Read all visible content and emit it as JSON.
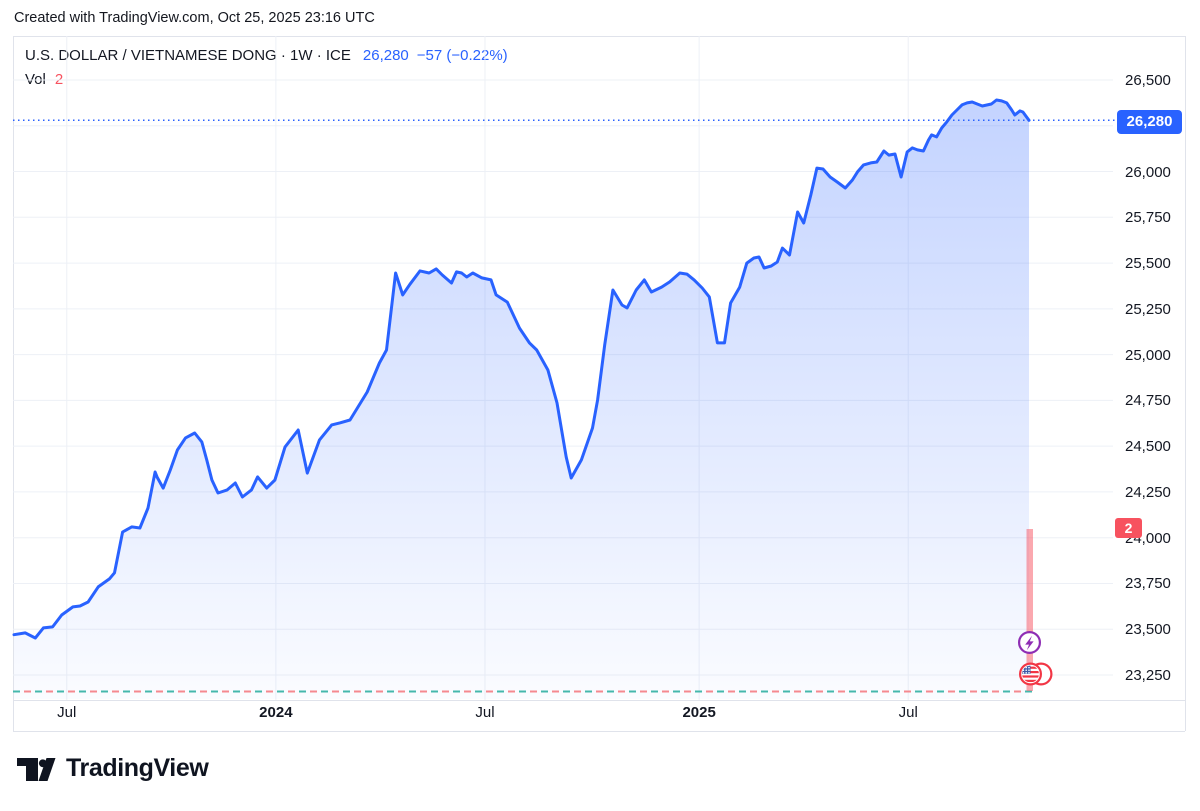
{
  "caption": "Created with TradingView.com, Oct 25, 2025 23:16 UTC",
  "legend": {
    "symbol_line": "U.S. DOLLAR / VIETNAMESE DONG · 1W · ICE",
    "last_price": "26,280",
    "change": "−57 (−0.22%)",
    "vol_label": "Vol",
    "vol_value": "2"
  },
  "price_scale": {
    "last_price_label": "26,280",
    "volume_label": "2"
  },
  "footer": {
    "brand": "TradingView"
  },
  "colors": {
    "line": "#2962FF",
    "badge_blue": "#2962FF",
    "badge_red": "#F7525F",
    "grid": "#EDF0F6",
    "border": "#E0E3EB",
    "volume_bar": "rgba(247,82,95,0.5)",
    "dash_teal": "#45B8AC",
    "dash_red": "#F5898F",
    "icon_purple": "#8E2DB4",
    "icon_red": "#F23645",
    "flag_canton_blue": "#3D5AA9",
    "text": "#131722"
  },
  "chart_data": {
    "type": "area",
    "title": "U.S. Dollar / Vietnamese Dong, 1 Week, ICE",
    "last": 26280,
    "change": -57,
    "change_pct": -0.22,
    "volume": 2,
    "x_range": [
      "2023-05-15",
      "2025-10-25"
    ],
    "ylim": [
      23150,
      26650
    ],
    "legend_position": "top-left",
    "grid": true,
    "y_ticks": [
      {
        "v": 26500,
        "label": "26,500"
      },
      {
        "v": 26250,
        "label": ""
      },
      {
        "v": 26000,
        "label": "26,000"
      },
      {
        "v": 25750,
        "label": "25,750"
      },
      {
        "v": 25500,
        "label": "25,500"
      },
      {
        "v": 25250,
        "label": "25,250"
      },
      {
        "v": 25000,
        "label": "25,000"
      },
      {
        "v": 24750,
        "label": "24,750"
      },
      {
        "v": 24500,
        "label": "24,500"
      },
      {
        "v": 24250,
        "label": "24,250"
      },
      {
        "v": 24000,
        "label": "24,000"
      },
      {
        "v": 23750,
        "label": "23,750"
      },
      {
        "v": 23500,
        "label": "23,500"
      },
      {
        "v": 23250,
        "label": "23,250"
      }
    ],
    "x_ticks": [
      {
        "label": "Jul",
        "f": 0.052,
        "bold": false
      },
      {
        "label": "2024",
        "f": 0.258,
        "bold": true
      },
      {
        "label": "Jul",
        "f": 0.464,
        "bold": false
      },
      {
        "label": "2025",
        "f": 0.675,
        "bold": true
      },
      {
        "label": "Jul",
        "f": 0.881,
        "bold": false
      }
    ],
    "points": [
      [
        0.0,
        23470
      ],
      [
        0.011,
        23480
      ],
      [
        0.021,
        23452
      ],
      [
        0.029,
        23507
      ],
      [
        0.038,
        23513
      ],
      [
        0.047,
        23578
      ],
      [
        0.058,
        23622
      ],
      [
        0.065,
        23627
      ],
      [
        0.073,
        23649
      ],
      [
        0.083,
        23731
      ],
      [
        0.094,
        23775
      ],
      [
        0.099,
        23808
      ],
      [
        0.107,
        24031
      ],
      [
        0.116,
        24059
      ],
      [
        0.124,
        24053
      ],
      [
        0.132,
        24162
      ],
      [
        0.139,
        24359
      ],
      [
        0.141,
        24331
      ],
      [
        0.147,
        24271
      ],
      [
        0.154,
        24370
      ],
      [
        0.161,
        24479
      ],
      [
        0.169,
        24545
      ],
      [
        0.178,
        24572
      ],
      [
        0.185,
        24523
      ],
      [
        0.19,
        24424
      ],
      [
        0.195,
        24315
      ],
      [
        0.201,
        24244
      ],
      [
        0.21,
        24261
      ],
      [
        0.218,
        24299
      ],
      [
        0.225,
        24222
      ],
      [
        0.234,
        24261
      ],
      [
        0.24,
        24332
      ],
      [
        0.249,
        24271
      ],
      [
        0.257,
        24315
      ],
      [
        0.267,
        24495
      ],
      [
        0.28,
        24588
      ],
      [
        0.289,
        24353
      ],
      [
        0.301,
        24534
      ],
      [
        0.313,
        24616
      ],
      [
        0.321,
        24627
      ],
      [
        0.331,
        24643
      ],
      [
        0.348,
        24796
      ],
      [
        0.36,
        24954
      ],
      [
        0.367,
        25025
      ],
      [
        0.376,
        25446
      ],
      [
        0.383,
        25326
      ],
      [
        0.39,
        25384
      ],
      [
        0.4,
        25457
      ],
      [
        0.409,
        25446
      ],
      [
        0.416,
        25468
      ],
      [
        0.422,
        25435
      ],
      [
        0.431,
        25391
      ],
      [
        0.436,
        25452
      ],
      [
        0.441,
        25446
      ],
      [
        0.446,
        25424
      ],
      [
        0.452,
        25446
      ],
      [
        0.461,
        25419
      ],
      [
        0.47,
        25408
      ],
      [
        0.475,
        25326
      ],
      [
        0.486,
        25287
      ],
      [
        0.498,
        25145
      ],
      [
        0.508,
        25063
      ],
      [
        0.515,
        25025
      ],
      [
        0.526,
        24916
      ],
      [
        0.535,
        24736
      ],
      [
        0.544,
        24441
      ],
      [
        0.549,
        24326
      ],
      [
        0.559,
        24425
      ],
      [
        0.57,
        24599
      ],
      [
        0.575,
        24752
      ],
      [
        0.582,
        25053
      ],
      [
        0.59,
        25353
      ],
      [
        0.599,
        25271
      ],
      [
        0.604,
        25255
      ],
      [
        0.613,
        25353
      ],
      [
        0.621,
        25408
      ],
      [
        0.628,
        25342
      ],
      [
        0.638,
        25369
      ],
      [
        0.646,
        25397
      ],
      [
        0.656,
        25446
      ],
      [
        0.663,
        25440
      ],
      [
        0.67,
        25408
      ],
      [
        0.678,
        25364
      ],
      [
        0.685,
        25315
      ],
      [
        0.693,
        25064
      ],
      [
        0.7,
        25064
      ],
      [
        0.706,
        25282
      ],
      [
        0.715,
        25369
      ],
      [
        0.722,
        25500
      ],
      [
        0.729,
        25528
      ],
      [
        0.734,
        25533
      ],
      [
        0.739,
        25473
      ],
      [
        0.746,
        25484
      ],
      [
        0.752,
        25506
      ],
      [
        0.757,
        25582
      ],
      [
        0.764,
        25544
      ],
      [
        0.772,
        25779
      ],
      [
        0.778,
        25719
      ],
      [
        0.785,
        25872
      ],
      [
        0.791,
        26019
      ],
      [
        0.797,
        26014
      ],
      [
        0.804,
        25970
      ],
      [
        0.811,
        25943
      ],
      [
        0.819,
        25910
      ],
      [
        0.826,
        25954
      ],
      [
        0.831,
        25998
      ],
      [
        0.837,
        26036
      ],
      [
        0.844,
        26047
      ],
      [
        0.85,
        26052
      ],
      [
        0.857,
        26112
      ],
      [
        0.862,
        26090
      ],
      [
        0.868,
        26096
      ],
      [
        0.874,
        25970
      ],
      [
        0.88,
        26107
      ],
      [
        0.885,
        26129
      ],
      [
        0.89,
        26118
      ],
      [
        0.896,
        26112
      ],
      [
        0.901,
        26172
      ],
      [
        0.904,
        26200
      ],
      [
        0.909,
        26189
      ],
      [
        0.914,
        26238
      ],
      [
        0.919,
        26271
      ],
      [
        0.924,
        26309
      ],
      [
        0.929,
        26336
      ],
      [
        0.934,
        26364
      ],
      [
        0.939,
        26375
      ],
      [
        0.944,
        26380
      ],
      [
        0.949,
        26369
      ],
      [
        0.954,
        26358
      ],
      [
        0.959,
        26364
      ],
      [
        0.963,
        26369
      ],
      [
        0.968,
        26391
      ],
      [
        0.973,
        26386
      ],
      [
        0.978,
        26375
      ],
      [
        0.983,
        26336
      ],
      [
        0.986,
        26309
      ],
      [
        0.991,
        26331
      ],
      [
        0.994,
        26325
      ],
      [
        1.0,
        26280
      ]
    ]
  }
}
